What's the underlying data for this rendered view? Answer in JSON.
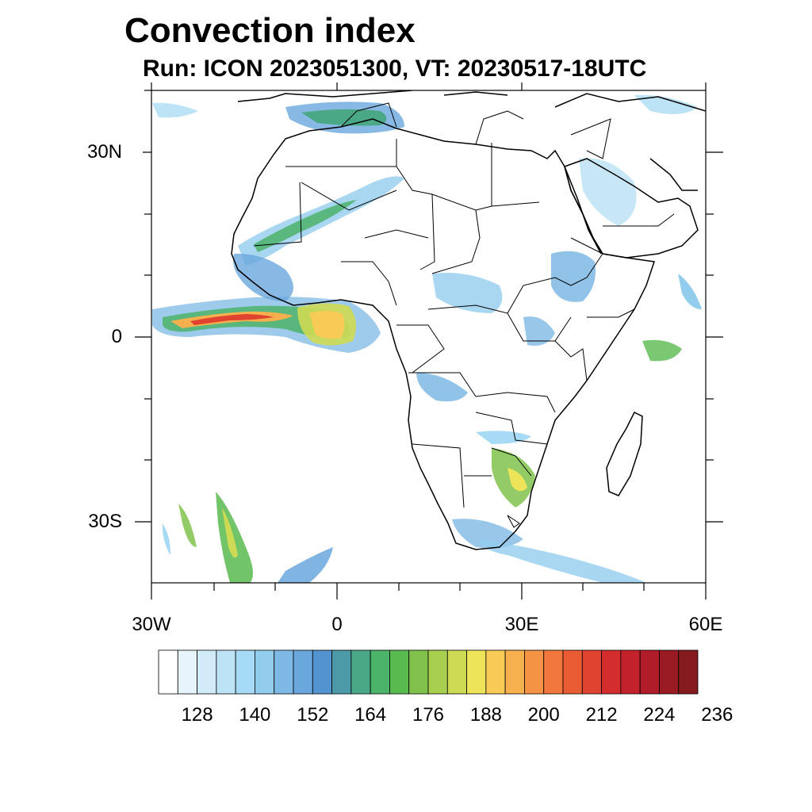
{
  "title": "Convection index",
  "subtitle": "Run: ICON 2023051300,  VT: 20230517-18UTC",
  "map": {
    "region": "Africa",
    "projection": "cylindrical equidistant",
    "lon_range": [
      -30,
      60
    ],
    "lat_range": [
      -40,
      40
    ],
    "lat_ticks": [
      "30N",
      "0",
      "30S"
    ],
    "lon_ticks": [
      "30W",
      "0",
      "30E",
      "60E"
    ]
  },
  "colorbar": {
    "labels": [
      "128",
      "140",
      "152",
      "164",
      "176",
      "188",
      "200",
      "212",
      "224",
      "236"
    ],
    "colors": [
      "#ffffff",
      "#e8f4fb",
      "#d2ebf8",
      "#bde3f6",
      "#a6daf5",
      "#93cdee",
      "#7eb9e5",
      "#6aa7dd",
      "#5394cf",
      "#4a9aa8",
      "#4aa886",
      "#4cb36a",
      "#59ba4f",
      "#80c24b",
      "#a8cf4d",
      "#cdda53",
      "#ede45a",
      "#f7cb55",
      "#f6b04e",
      "#f59345",
      "#f1773d",
      "#e95c34",
      "#e0432f",
      "#d42d2d",
      "#c3212c",
      "#b01c28",
      "#9a1b23",
      "#861b1f"
    ]
  }
}
